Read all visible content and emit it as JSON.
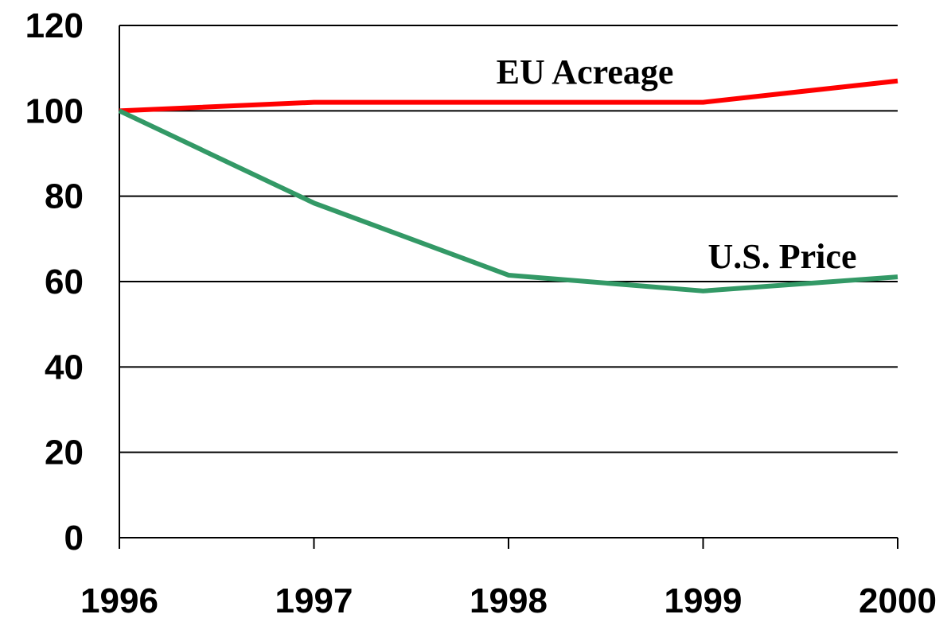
{
  "chart_data": {
    "type": "line",
    "categories": [
      "1996",
      "1997",
      "1998",
      "1999",
      "2000"
    ],
    "series": [
      {
        "name": "EU Acreage",
        "color": "#ff0000",
        "values": [
          100,
          102,
          102,
          102,
          107
        ]
      },
      {
        "name": "U.S. Price",
        "color": "#339966",
        "values": [
          100,
          78.4,
          61.5,
          57.8,
          61.1
        ]
      }
    ],
    "ylim": [
      0,
      120
    ],
    "yticks": [
      0,
      20,
      40,
      60,
      80,
      100,
      120
    ],
    "grid": true
  }
}
